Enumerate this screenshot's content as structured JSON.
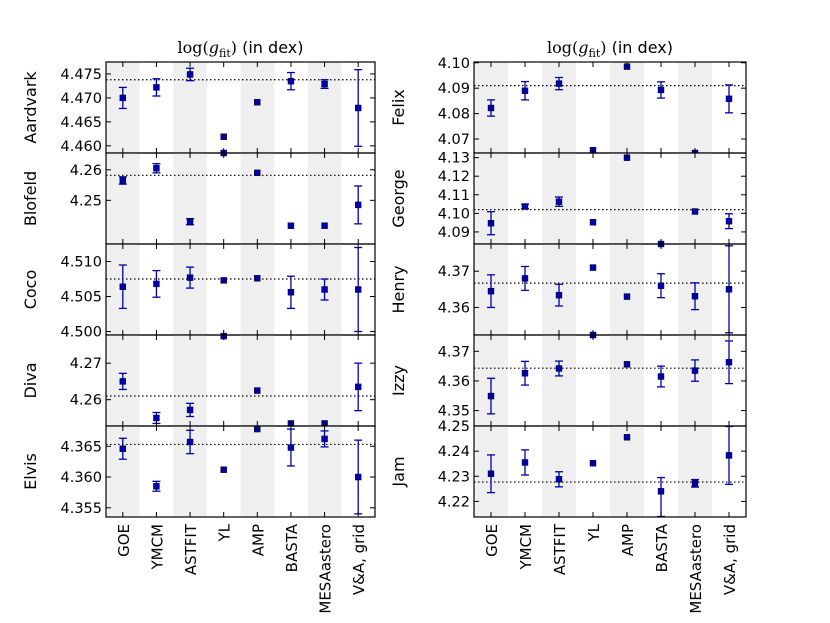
{
  "chart_data": [
    {
      "type": "scatter",
      "title": "log(g_fit) (in dex)",
      "title_parts": {
        "prefix": "log(",
        "var": "g",
        "sub": "fit",
        "suffix": ")",
        "unit": " (in dex)"
      },
      "categories": [
        "GOE",
        "YMCM",
        "ASTFIT",
        "YL",
        "AMP",
        "BASTA",
        "MESAastero",
        "V&A, grid"
      ],
      "shaded_columns": [
        "GOE",
        "ASTFIT",
        "AMP",
        "MESAastero"
      ],
      "panels": [
        {
          "star": "Aardvark",
          "ylim": [
            4.4585,
            4.4775
          ],
          "yticks": [
            4.46,
            4.465,
            4.47,
            4.475
          ],
          "ytick_labels": [
            "4.460",
            "4.465",
            "4.470",
            "4.475"
          ],
          "reference": 4.4738,
          "values": [
            4.47,
            4.4722,
            4.4749,
            4.4619,
            4.4691,
            4.4735,
            4.4729,
            4.4679
          ],
          "err_low": [
            0.0022,
            0.0018,
            0.0013,
            0,
            0,
            0.0018,
            0.0009,
            0.008
          ],
          "err_high": [
            0.0022,
            0.0018,
            0.0013,
            0,
            0,
            0.0018,
            0.0009,
            0.008
          ]
        },
        {
          "star": "Blofeld",
          "ylim": [
            4.2357,
            4.2655
          ],
          "yticks": [
            4.25,
            4.26
          ],
          "ytick_labels": [
            "4.25",
            "4.26"
          ],
          "reference": 4.2582,
          "values": [
            4.2565,
            4.2605,
            4.243,
            4.2655,
            4.259,
            4.2417,
            4.2417,
            4.2485
          ],
          "err_low": [
            0.0012,
            0.0015,
            0.001,
            0,
            0,
            0,
            0,
            0.0062
          ],
          "err_high": [
            0.0012,
            0.0015,
            0.001,
            0,
            0,
            0,
            0,
            0.0062
          ]
        },
        {
          "star": "Coco",
          "ylim": [
            4.4995,
            4.5125
          ],
          "yticks": [
            4.5,
            4.505,
            4.51
          ],
          "ytick_labels": [
            "4.500",
            "4.505",
            "4.510"
          ],
          "reference": 4.5075,
          "values": [
            4.5064,
            4.5068,
            4.5077,
            4.5073,
            4.5076,
            4.5056,
            4.506,
            4.506
          ],
          "err_low": [
            0.0031,
            0.0019,
            0.0015,
            0,
            0,
            0.0023,
            0.0015,
            0.006
          ],
          "err_high": [
            0.0031,
            0.0019,
            0.0015,
            0,
            0,
            0.0023,
            0.0015,
            0.006
          ]
        },
        {
          "star": "Diva",
          "ylim": [
            4.2528,
            4.2777
          ],
          "yticks": [
            4.26,
            4.27
          ],
          "ytick_labels": [
            "4.26",
            "4.27"
          ],
          "reference": 4.261,
          "values": [
            4.265,
            4.255,
            4.2572,
            4.2774,
            4.2625,
            4.2535,
            4.2535,
            4.2635
          ],
          "err_low": [
            0.0022,
            0.0015,
            0.0018,
            0,
            0,
            0,
            0,
            0.0065
          ],
          "err_high": [
            0.0022,
            0.0015,
            0.0018,
            0,
            0,
            0,
            0,
            0.0065
          ]
        },
        {
          "star": "Elvis",
          "ylim": [
            4.3535,
            4.3683
          ],
          "yticks": [
            4.355,
            4.36,
            4.365
          ],
          "ytick_labels": [
            "4.355",
            "4.360",
            "4.365"
          ],
          "reference": 4.3653,
          "values": [
            4.3646,
            4.3585,
            4.3657,
            4.3612,
            4.3678,
            4.3648,
            4.3662,
            4.36
          ],
          "err_low": [
            0.0017,
            0.0008,
            0.0019,
            0,
            0,
            0.003,
            0.0013,
            0.006
          ],
          "err_high": [
            0.0017,
            0.0008,
            0.0019,
            0,
            0,
            0.003,
            0.0013,
            0.006
          ]
        }
      ]
    },
    {
      "type": "scatter",
      "title": "log(g_fit) (in dex)",
      "title_parts": {
        "prefix": "log(",
        "var": "g",
        "sub": "fit",
        "suffix": ")",
        "unit": " (in dex)"
      },
      "categories": [
        "GOE",
        "YMCM",
        "ASTFIT",
        "YL",
        "AMP",
        "BASTA",
        "MESAastero",
        "V&A, grid"
      ],
      "shaded_columns": [
        "GOE",
        "ASTFIT",
        "AMP",
        "MESAastero"
      ],
      "panels": [
        {
          "star": "Felix",
          "ylim": [
            4.0645,
            4.1003
          ],
          "yticks": [
            4.07,
            4.08,
            4.09,
            4.1
          ],
          "ytick_labels": [
            "4.07",
            "4.08",
            "4.09",
            "4.10"
          ],
          "reference": 4.091,
          "values": [
            4.0822,
            4.089,
            4.0918,
            4.0656,
            4.0985,
            4.0893,
            4.0645,
            4.0858
          ],
          "err_low": [
            0.0032,
            0.0036,
            0.0024,
            0,
            0,
            0.0032,
            0,
            0.0055
          ],
          "err_high": [
            0.0032,
            0.0036,
            0.0024,
            0,
            0,
            0.0032,
            0,
            0.0055
          ]
        },
        {
          "star": "George",
          "ylim": [
            4.0835,
            4.1325
          ],
          "yticks": [
            4.09,
            4.1,
            4.11,
            4.12,
            4.13
          ],
          "ytick_labels": [
            "4.09",
            "4.10",
            "4.11",
            "4.12",
            "4.13"
          ],
          "reference": 4.102,
          "values": [
            4.0947,
            4.1037,
            4.1063,
            4.0952,
            4.13,
            4.0835,
            4.101,
            4.0958
          ],
          "err_low": [
            0.0062,
            0.0012,
            0.0025,
            0,
            0,
            0,
            0,
            0.004
          ],
          "err_high": [
            0.0062,
            0.0012,
            0.0025,
            0,
            0,
            0,
            0,
            0.004
          ]
        },
        {
          "star": "Henry",
          "ylim": [
            4.3524,
            4.3775
          ],
          "yticks": [
            4.36,
            4.37
          ],
          "ytick_labels": [
            "4.36",
            "4.37"
          ],
          "reference": 4.3667,
          "values": [
            4.3645,
            4.368,
            4.3634,
            4.371,
            4.363,
            4.366,
            4.3631,
            4.365
          ],
          "err_low": [
            0.0045,
            0.0033,
            0.003,
            0,
            0,
            0.0033,
            0.0037,
            0.012
          ],
          "err_high": [
            0.0045,
            0.0033,
            0.003,
            0,
            0,
            0.0033,
            0.0037,
            0.012
          ]
        },
        {
          "star": "Izzy",
          "ylim": [
            4.3448,
            4.3755
          ],
          "yticks": [
            4.35,
            4.36,
            4.37
          ],
          "ytick_labels": [
            "4.35",
            "4.36",
            "4.37"
          ],
          "reference": 4.3643,
          "values": [
            4.3549,
            4.3626,
            4.3642,
            4.3755,
            4.3656,
            4.3615,
            4.3635,
            4.3663
          ],
          "err_low": [
            0.006,
            0.004,
            0.0025,
            0,
            0,
            0.0035,
            0.0036,
            0.0072
          ],
          "err_high": [
            0.006,
            0.004,
            0.0025,
            0,
            0,
            0.0035,
            0.0036,
            0.0072
          ]
        },
        {
          "star": "Jam",
          "ylim": [
            4.2138,
            4.25
          ],
          "yticks": [
            4.22,
            4.23,
            4.24,
            4.25
          ],
          "ytick_labels": [
            "4.22",
            "4.23",
            "4.24",
            "4.25"
          ],
          "reference": 4.2277,
          "values": [
            4.231,
            4.2355,
            4.2288,
            4.2352,
            4.2455,
            4.224,
            4.2272,
            4.2383
          ],
          "err_low": [
            0.0075,
            0.005,
            0.003,
            0,
            0,
            0.01,
            0.0015,
            0.0115
          ],
          "err_high": [
            0.0075,
            0.005,
            0.003,
            0,
            0,
            0.0055,
            0.0015,
            0.0115
          ]
        }
      ]
    }
  ],
  "colors": {
    "marker": "#0000aa",
    "shade": "#efefef",
    "axes": "#000000",
    "reference_line": "#000000"
  }
}
